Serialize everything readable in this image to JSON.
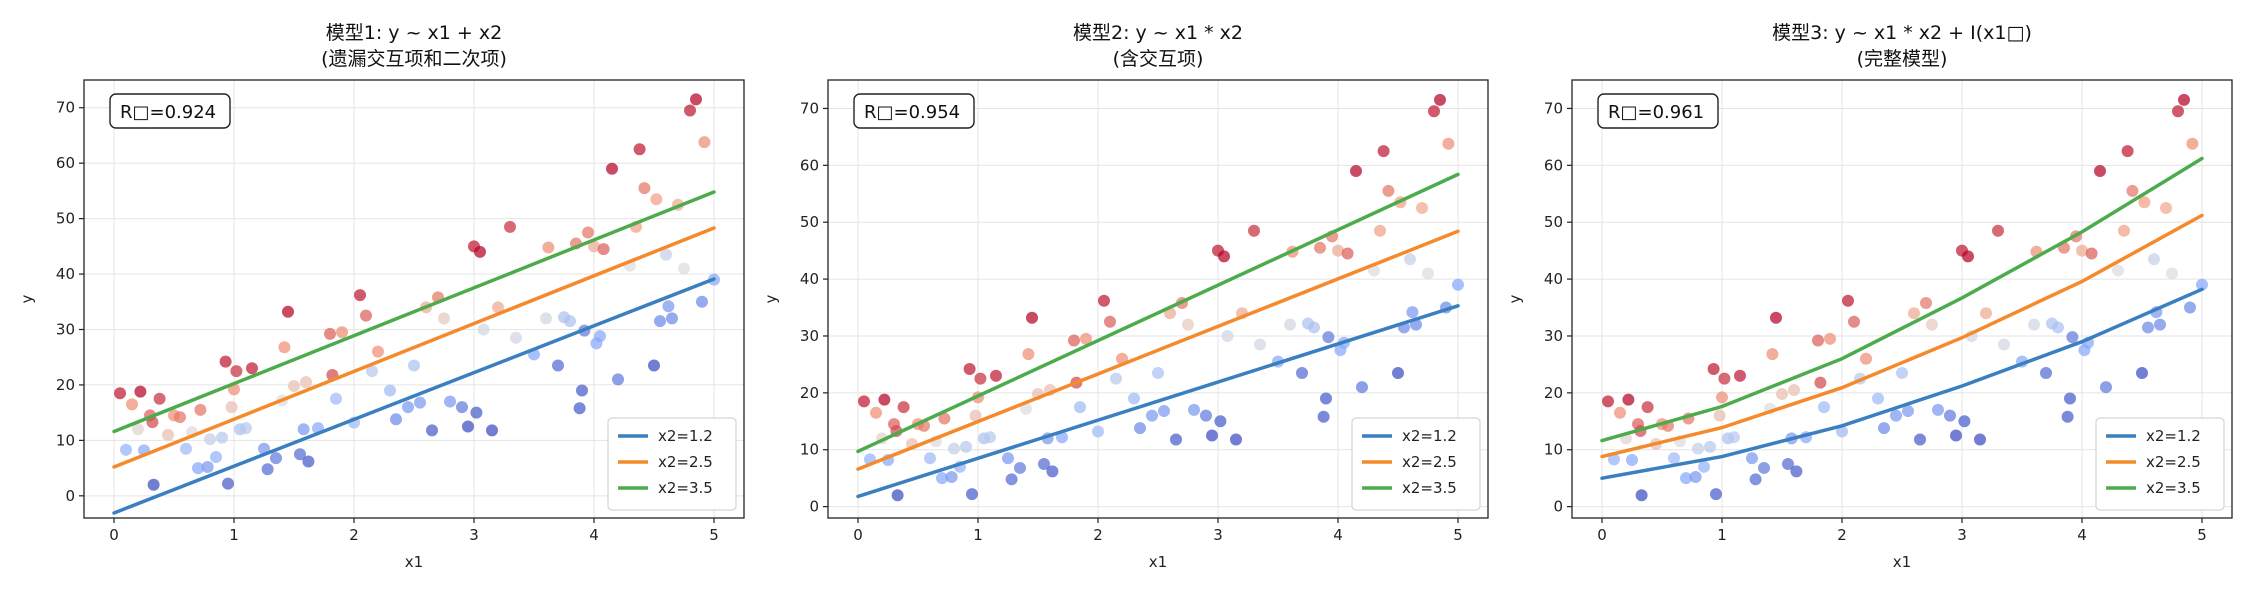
{
  "chart_data": [
    {
      "type": "scatter",
      "title_line1": "模型1: y ~ x1 + x2",
      "title_line2": "(遗漏交互项和二次项)",
      "xlabel": "x1",
      "ylabel": "y",
      "xlim": [
        -0.25,
        5.25
      ],
      "ylim": [
        -4,
        75
      ],
      "xticks": [
        0,
        1,
        2,
        3,
        4,
        5
      ],
      "yticks": [
        0,
        10,
        20,
        30,
        40,
        50,
        60,
        70
      ],
      "grid": true,
      "annotation": "R□=0.924",
      "legend_position": "lower-right",
      "series": [
        {
          "name": "x2=1.2",
          "color": "#3a7fbf",
          "x": [
            0,
            5
          ],
          "y": [
            -3.1,
            39.1
          ]
        },
        {
          "name": "x2=2.5",
          "color": "#f58a2c",
          "x": [
            0,
            5
          ],
          "y": [
            5.2,
            48.3
          ]
        },
        {
          "name": "x2=3.5",
          "color": "#4cab4c",
          "x": [
            0,
            5
          ],
          "y": [
            11.6,
            54.8
          ]
        }
      ]
    },
    {
      "type": "scatter",
      "title_line1": "模型2: y ~ x1 * x2",
      "title_line2": "(含交互项)",
      "xlabel": "x1",
      "ylabel": "y",
      "xlim": [
        -0.25,
        5.25
      ],
      "ylim": [
        -2,
        75
      ],
      "xticks": [
        0,
        1,
        2,
        3,
        4,
        5
      ],
      "yticks": [
        0,
        10,
        20,
        30,
        40,
        50,
        60,
        70
      ],
      "grid": true,
      "annotation": "R□=0.954",
      "legend_position": "lower-right",
      "series": [
        {
          "name": "x2=1.2",
          "color": "#3a7fbf",
          "x": [
            0,
            5
          ],
          "y": [
            1.8,
            35.3
          ]
        },
        {
          "name": "x2=2.5",
          "color": "#f58a2c",
          "x": [
            0,
            5
          ],
          "y": [
            6.6,
            48.4
          ]
        },
        {
          "name": "x2=3.5",
          "color": "#4cab4c",
          "x": [
            0,
            5
          ],
          "y": [
            9.7,
            58.4
          ]
        }
      ]
    },
    {
      "type": "scatter",
      "title_line1": "模型3: y ~ x1 * x2 + I(x1□)",
      "title_line2": "(完整模型)",
      "xlabel": "x1",
      "ylabel": "y",
      "xlim": [
        -0.25,
        5.25
      ],
      "ylim": [
        -2,
        75
      ],
      "xticks": [
        0,
        1,
        2,
        3,
        4,
        5
      ],
      "yticks": [
        0,
        10,
        20,
        30,
        40,
        50,
        60,
        70
      ],
      "grid": true,
      "annotation": "R□=0.961",
      "legend_position": "lower-right",
      "series": [
        {
          "name": "x2=1.2",
          "color": "#3a7fbf",
          "x": [
            0,
            1,
            2,
            3,
            4,
            5
          ],
          "y": [
            5.0,
            8.8,
            14.2,
            21.2,
            29.0,
            38.2
          ]
        },
        {
          "name": "x2=2.5",
          "color": "#f58a2c",
          "x": [
            0,
            1,
            2,
            3,
            4,
            5
          ],
          "y": [
            8.8,
            13.9,
            20.9,
            29.7,
            39.6,
            51.2
          ]
        },
        {
          "name": "x2=3.5",
          "color": "#4cab4c",
          "x": [
            0,
            1,
            2,
            3,
            4,
            5
          ],
          "y": [
            11.6,
            17.6,
            26.0,
            36.7,
            48.3,
            61.2
          ]
        }
      ]
    }
  ],
  "scatter_points": [
    {
      "x": 0.05,
      "y": 18.5,
      "z": 3.5
    },
    {
      "x": 0.1,
      "y": 8.3,
      "z": 1.7
    },
    {
      "x": 0.15,
      "y": 16.5,
      "z": 3.0
    },
    {
      "x": 0.2,
      "y": 12.0,
      "z": 2.4
    },
    {
      "x": 0.22,
      "y": 18.8,
      "z": 3.6
    },
    {
      "x": 0.25,
      "y": 8.2,
      "z": 1.6
    },
    {
      "x": 0.3,
      "y": 14.5,
      "z": 3.2
    },
    {
      "x": 0.32,
      "y": 13.3,
      "z": 3.3
    },
    {
      "x": 0.33,
      "y": 2.0,
      "z": 1.0
    },
    {
      "x": 0.38,
      "y": 17.5,
      "z": 3.4
    },
    {
      "x": 0.45,
      "y": 11.0,
      "z": 2.6
    },
    {
      "x": 0.5,
      "y": 14.5,
      "z": 3.0
    },
    {
      "x": 0.55,
      "y": 14.2,
      "z": 3.1
    },
    {
      "x": 0.6,
      "y": 8.5,
      "z": 1.8
    },
    {
      "x": 0.65,
      "y": 11.5,
      "z": 2.3
    },
    {
      "x": 0.7,
      "y": 5.0,
      "z": 1.6
    },
    {
      "x": 0.72,
      "y": 15.5,
      "z": 3.1
    },
    {
      "x": 0.78,
      "y": 5.2,
      "z": 1.5
    },
    {
      "x": 0.8,
      "y": 10.2,
      "z": 2.1
    },
    {
      "x": 0.85,
      "y": 7.0,
      "z": 1.7
    },
    {
      "x": 0.9,
      "y": 10.5,
      "z": 2.0
    },
    {
      "x": 0.93,
      "y": 24.2,
      "z": 3.5
    },
    {
      "x": 0.95,
      "y": 2.2,
      "z": 1.1
    },
    {
      "x": 0.98,
      "y": 16.0,
      "z": 2.6
    },
    {
      "x": 1.0,
      "y": 19.2,
      "z": 3.0
    },
    {
      "x": 1.02,
      "y": 22.5,
      "z": 3.4
    },
    {
      "x": 1.05,
      "y": 12.0,
      "z": 1.9
    },
    {
      "x": 1.1,
      "y": 12.2,
      "z": 2.0
    },
    {
      "x": 1.15,
      "y": 23.0,
      "z": 3.5
    },
    {
      "x": 1.25,
      "y": 8.5,
      "z": 1.5
    },
    {
      "x": 1.28,
      "y": 4.8,
      "z": 1.2
    },
    {
      "x": 1.35,
      "y": 6.8,
      "z": 1.3
    },
    {
      "x": 1.4,
      "y": 17.2,
      "z": 2.3
    },
    {
      "x": 1.42,
      "y": 26.8,
      "z": 3.0
    },
    {
      "x": 1.45,
      "y": 33.2,
      "z": 3.6
    },
    {
      "x": 1.5,
      "y": 19.8,
      "z": 2.6
    },
    {
      "x": 1.55,
      "y": 7.5,
      "z": 1.2
    },
    {
      "x": 1.58,
      "y": 12.0,
      "z": 1.5
    },
    {
      "x": 1.6,
      "y": 20.5,
      "z": 2.6
    },
    {
      "x": 1.62,
      "y": 6.2,
      "z": 1.1
    },
    {
      "x": 1.7,
      "y": 12.2,
      "z": 1.6
    },
    {
      "x": 1.8,
      "y": 29.2,
      "z": 3.2
    },
    {
      "x": 1.82,
      "y": 21.8,
      "z": 3.3
    },
    {
      "x": 1.85,
      "y": 17.5,
      "z": 1.8
    },
    {
      "x": 1.9,
      "y": 29.5,
      "z": 3.0
    },
    {
      "x": 2.0,
      "y": 13.2,
      "z": 1.8
    },
    {
      "x": 2.05,
      "y": 36.2,
      "z": 3.5
    },
    {
      "x": 2.1,
      "y": 32.5,
      "z": 3.2
    },
    {
      "x": 2.15,
      "y": 22.5,
      "z": 2.0
    },
    {
      "x": 2.2,
      "y": 26.0,
      "z": 3.0
    },
    {
      "x": 2.3,
      "y": 19.0,
      "z": 1.8
    },
    {
      "x": 2.35,
      "y": 13.8,
      "z": 1.4
    },
    {
      "x": 2.45,
      "y": 16.0,
      "z": 1.5
    },
    {
      "x": 2.5,
      "y": 23.5,
      "z": 1.9
    },
    {
      "x": 2.55,
      "y": 16.8,
      "z": 1.5
    },
    {
      "x": 2.6,
      "y": 34.0,
      "z": 2.8
    },
    {
      "x": 2.65,
      "y": 11.8,
      "z": 1.1
    },
    {
      "x": 2.7,
      "y": 35.8,
      "z": 3.1
    },
    {
      "x": 2.75,
      "y": 32.0,
      "z": 2.5
    },
    {
      "x": 2.8,
      "y": 17.0,
      "z": 1.5
    },
    {
      "x": 2.9,
      "y": 16.0,
      "z": 1.3
    },
    {
      "x": 2.95,
      "y": 12.5,
      "z": 1.0
    },
    {
      "x": 3.0,
      "y": 45.0,
      "z": 3.5
    },
    {
      "x": 3.02,
      "y": 15.0,
      "z": 1.1
    },
    {
      "x": 3.05,
      "y": 44.0,
      "z": 3.6
    },
    {
      "x": 3.08,
      "y": 30.0,
      "z": 2.2
    },
    {
      "x": 3.15,
      "y": 11.8,
      "z": 1.0
    },
    {
      "x": 3.2,
      "y": 34.0,
      "z": 2.8
    },
    {
      "x": 3.3,
      "y": 48.5,
      "z": 3.4
    },
    {
      "x": 3.35,
      "y": 28.5,
      "z": 2.2
    },
    {
      "x": 3.5,
      "y": 25.5,
      "z": 1.6
    },
    {
      "x": 3.6,
      "y": 32.0,
      "z": 2.2
    },
    {
      "x": 3.62,
      "y": 44.8,
      "z": 3.0
    },
    {
      "x": 3.7,
      "y": 23.5,
      "z": 1.2
    },
    {
      "x": 3.75,
      "y": 32.2,
      "z": 1.9
    },
    {
      "x": 3.8,
      "y": 31.5,
      "z": 1.9
    },
    {
      "x": 3.85,
      "y": 45.5,
      "z": 3.1
    },
    {
      "x": 3.88,
      "y": 15.8,
      "z": 1.1
    },
    {
      "x": 3.9,
      "y": 19.0,
      "z": 1.1
    },
    {
      "x": 3.92,
      "y": 29.8,
      "z": 1.3
    },
    {
      "x": 3.95,
      "y": 47.5,
      "z": 3.1
    },
    {
      "x": 4.0,
      "y": 45.0,
      "z": 2.8
    },
    {
      "x": 4.02,
      "y": 27.5,
      "z": 1.6
    },
    {
      "x": 4.05,
      "y": 28.8,
      "z": 1.6
    },
    {
      "x": 4.08,
      "y": 44.5,
      "z": 3.2
    },
    {
      "x": 4.15,
      "y": 59.0,
      "z": 3.6
    },
    {
      "x": 4.2,
      "y": 21.0,
      "z": 1.3
    },
    {
      "x": 4.3,
      "y": 41.5,
      "z": 2.3
    },
    {
      "x": 4.35,
      "y": 48.5,
      "z": 2.9
    },
    {
      "x": 4.38,
      "y": 62.5,
      "z": 3.5
    },
    {
      "x": 4.42,
      "y": 55.5,
      "z": 3.1
    },
    {
      "x": 4.5,
      "y": 23.5,
      "z": 1.0
    },
    {
      "x": 4.52,
      "y": 53.5,
      "z": 2.9
    },
    {
      "x": 4.55,
      "y": 31.5,
      "z": 1.4
    },
    {
      "x": 4.6,
      "y": 43.5,
      "z": 2.1
    },
    {
      "x": 4.62,
      "y": 34.2,
      "z": 1.5
    },
    {
      "x": 4.65,
      "y": 32.0,
      "z": 1.4
    },
    {
      "x": 4.7,
      "y": 52.5,
      "z": 2.8
    },
    {
      "x": 4.75,
      "y": 41.0,
      "z": 2.3
    },
    {
      "x": 4.8,
      "y": 69.5,
      "z": 3.5
    },
    {
      "x": 4.85,
      "y": 71.5,
      "z": 3.6
    },
    {
      "x": 4.9,
      "y": 35.0,
      "z": 1.4
    },
    {
      "x": 4.92,
      "y": 63.8,
      "z": 3.0
    },
    {
      "x": 5.0,
      "y": 39.0,
      "z": 1.6
    }
  ]
}
